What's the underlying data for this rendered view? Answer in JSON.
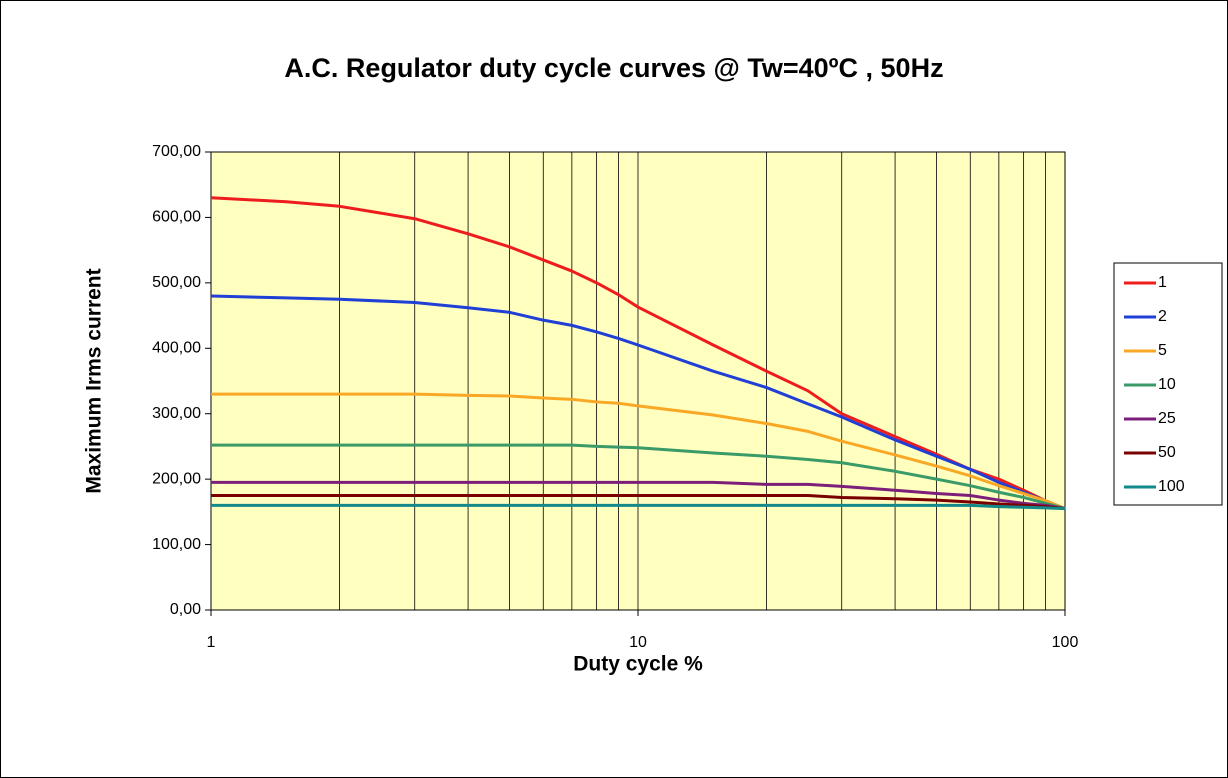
{
  "chart_data": {
    "type": "line",
    "title": "A.C. Regulator duty cycle curves @ Tw=40ºC , 50Hz",
    "x_label": "Duty cycle %",
    "y_label": "Maximum Irms current",
    "x": [
      1,
      1.5,
      2,
      3,
      4,
      5,
      6,
      7,
      8,
      9,
      10,
      15,
      20,
      25,
      30,
      40,
      50,
      60,
      70,
      80,
      90,
      100
    ],
    "series": [
      {
        "name": "1",
        "color": "#ee1c1c",
        "values": [
          630,
          624,
          617,
          598,
          575,
          555,
          535,
          518,
          500,
          482,
          463,
          405,
          365,
          335,
          300,
          265,
          238,
          215,
          200,
          183,
          167,
          155
        ]
      },
      {
        "name": "2",
        "color": "#1f3fd6",
        "values": [
          480,
          477,
          475,
          470,
          462,
          455,
          443,
          435,
          425,
          415,
          405,
          365,
          340,
          315,
          295,
          260,
          235,
          215,
          195,
          180,
          167,
          155
        ]
      },
      {
        "name": "5",
        "color": "#f9a825",
        "values": [
          330,
          330,
          330,
          330,
          328,
          327,
          324,
          322,
          318,
          316,
          312,
          298,
          285,
          273,
          258,
          237,
          220,
          205,
          190,
          178,
          167,
          155
        ]
      },
      {
        "name": "10",
        "color": "#3a9a68",
        "values": [
          252,
          252,
          252,
          252,
          252,
          252,
          252,
          252,
          250,
          249,
          248,
          240,
          235,
          230,
          225,
          212,
          200,
          190,
          180,
          172,
          163,
          155
        ]
      },
      {
        "name": "25",
        "color": "#7b1f7b",
        "values": [
          195,
          195,
          195,
          195,
          195,
          195,
          195,
          195,
          195,
          195,
          195,
          195,
          192,
          192,
          189,
          183,
          178,
          175,
          168,
          163,
          160,
          155
        ]
      },
      {
        "name": "50",
        "color": "#7a0000",
        "values": [
          175,
          175,
          175,
          175,
          175,
          175,
          175,
          175,
          175,
          175,
          175,
          175,
          175,
          175,
          172,
          170,
          168,
          165,
          162,
          160,
          158,
          155
        ]
      },
      {
        "name": "100",
        "color": "#138a8a",
        "values": [
          160,
          160,
          160,
          160,
          160,
          160,
          160,
          160,
          160,
          160,
          160,
          160,
          160,
          160,
          160,
          160,
          160,
          160,
          158,
          157,
          156,
          155
        ]
      }
    ],
    "xlim": [
      1,
      100
    ],
    "xticks": [
      1,
      10,
      100
    ],
    "xscale": "log",
    "ylim": [
      0,
      700
    ],
    "yticks": [
      {
        "value": 0,
        "label": "0,00"
      },
      {
        "value": 100,
        "label": "100,00"
      },
      {
        "value": 200,
        "label": "200,00"
      },
      {
        "value": 300,
        "label": "300,00"
      },
      {
        "value": 400,
        "label": "400,00"
      },
      {
        "value": 500,
        "label": "500,00"
      },
      {
        "value": 600,
        "label": "600,00"
      },
      {
        "value": 700,
        "label": "700,00"
      }
    ],
    "grid": true,
    "legend": "right",
    "background": "#ffffc0"
  }
}
